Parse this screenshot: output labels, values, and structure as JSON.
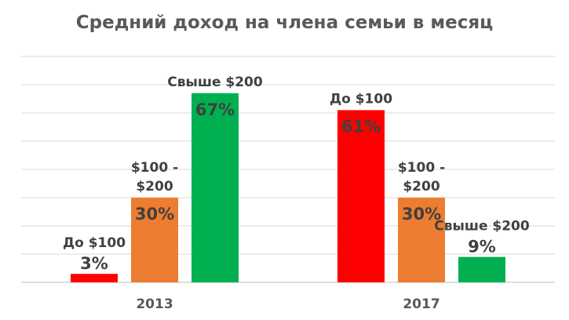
{
  "chart_data": {
    "type": "bar",
    "title": "Средний доход на члена семьи в месяц",
    "categories": [
      "2013",
      "2017"
    ],
    "groups": [
      {
        "year": "2013",
        "bars": [
          {
            "label_lines": [
              "До $100"
            ],
            "value": 3,
            "value_label": "3%",
            "color": "#ff0000"
          },
          {
            "label_lines": [
              "$100 -",
              "$200"
            ],
            "value": 30,
            "value_label": "30%",
            "color": "#ed7d31"
          },
          {
            "label_lines": [
              "Свыше $200"
            ],
            "value": 67,
            "value_label": "67%",
            "color": "#00b050"
          }
        ]
      },
      {
        "year": "2017",
        "bars": [
          {
            "label_lines": [
              "До $100"
            ],
            "value": 61,
            "value_label": "61%",
            "color": "#ff0000"
          },
          {
            "label_lines": [
              "$100 -",
              "$200"
            ],
            "value": 30,
            "value_label": "30%",
            "color": "#ed7d31"
          },
          {
            "label_lines": [
              "Свыше $200"
            ],
            "value": 9,
            "value_label": "9%",
            "color": "#00b050"
          }
        ]
      }
    ],
    "ylim": [
      0,
      80
    ],
    "grid": true,
    "legend": "none"
  }
}
